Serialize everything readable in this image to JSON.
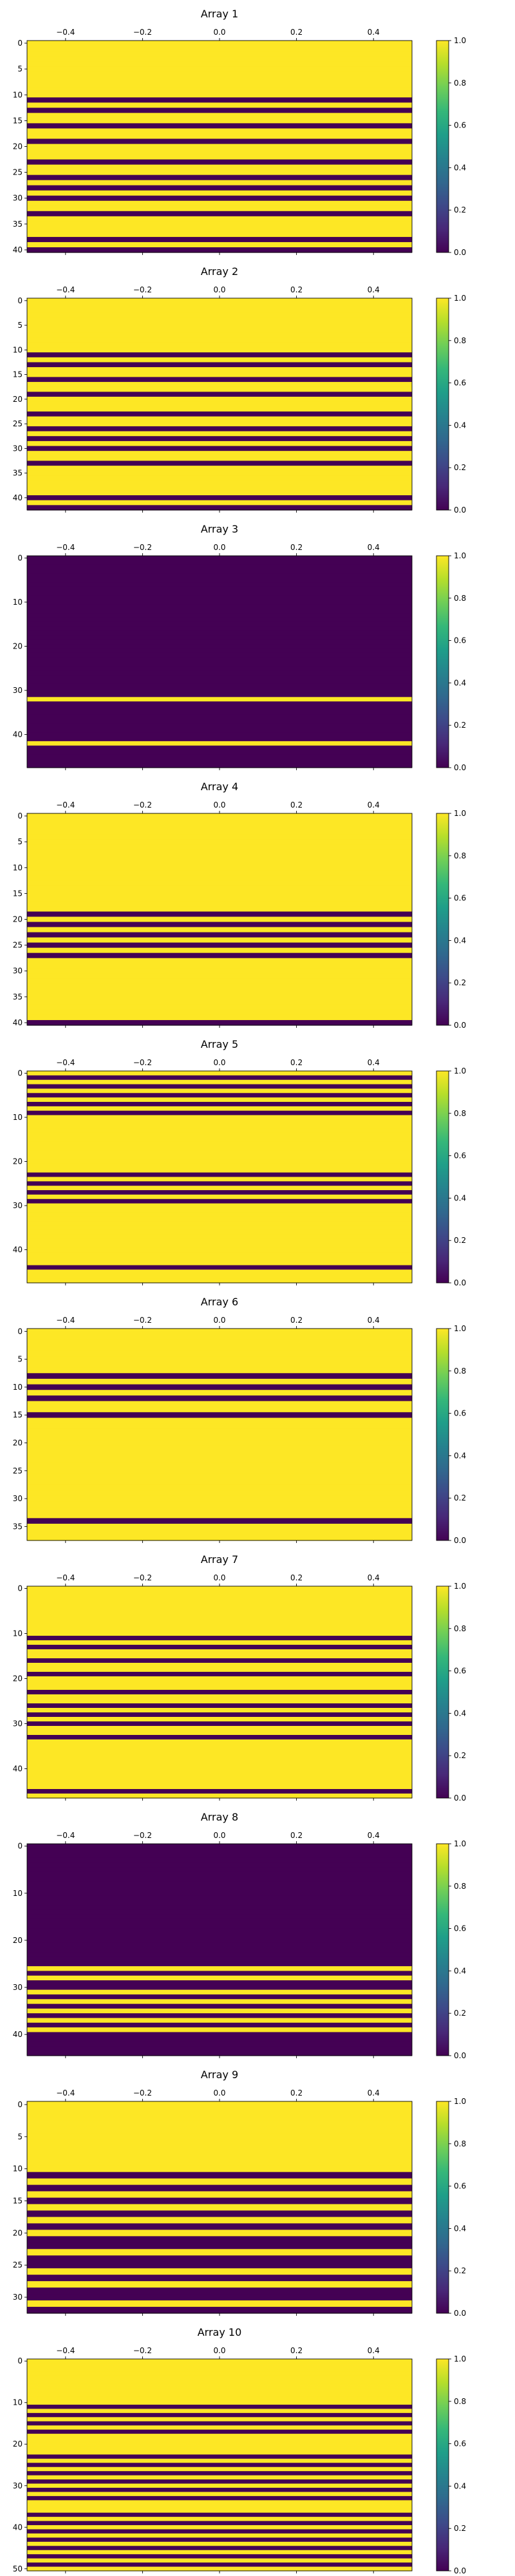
{
  "chart_data": [
    {
      "type": "heatmap",
      "title": "Array 1",
      "rows": 41,
      "xlim": [
        -0.5,
        0.5
      ],
      "x_ticks": [
        "−0.4",
        "−0.2",
        "0.0",
        "0.2",
        "0.4"
      ],
      "y_ticks": [
        "0",
        "5",
        "10",
        "15",
        "20",
        "25",
        "30",
        "35",
        "40"
      ],
      "values": [
        1,
        1,
        1,
        1,
        1,
        1,
        1,
        1,
        1,
        1,
        1,
        0,
        1,
        0,
        1,
        1,
        0,
        1,
        1,
        0,
        1,
        1,
        1,
        0,
        1,
        1,
        0,
        1,
        0,
        1,
        0,
        1,
        1,
        0,
        1,
        1,
        1,
        1,
        0,
        1,
        0
      ]
    },
    {
      "type": "heatmap",
      "title": "Array 2",
      "rows": 43,
      "xlim": [
        -0.5,
        0.5
      ],
      "x_ticks": [
        "−0.4",
        "−0.2",
        "0.0",
        "0.2",
        "0.4"
      ],
      "y_ticks": [
        "0",
        "5",
        "10",
        "15",
        "20",
        "25",
        "30",
        "35",
        "40"
      ],
      "values": [
        1,
        1,
        1,
        1,
        1,
        1,
        1,
        1,
        1,
        1,
        1,
        0,
        1,
        0,
        1,
        1,
        0,
        1,
        1,
        0,
        1,
        1,
        1,
        0,
        1,
        1,
        0,
        1,
        0,
        1,
        0,
        1,
        1,
        0,
        1,
        1,
        1,
        1,
        1,
        1,
        0,
        1,
        0
      ]
    },
    {
      "type": "heatmap",
      "title": "Array 3",
      "rows": 48,
      "xlim": [
        -0.5,
        0.5
      ],
      "x_ticks": [
        "−0.4",
        "−0.2",
        "0.0",
        "0.2",
        "0.4"
      ],
      "y_ticks": [
        "0",
        "10",
        "20",
        "30",
        "40"
      ],
      "values": [
        0,
        0,
        0,
        0,
        0,
        0,
        0,
        0,
        0,
        0,
        0,
        0,
        0,
        0,
        0,
        0,
        0,
        0,
        0,
        0,
        0,
        0,
        0,
        0,
        0,
        0,
        0,
        0,
        0,
        0,
        0,
        0,
        1,
        0,
        0,
        0,
        0,
        0,
        0,
        0,
        0,
        0,
        1,
        0,
        0,
        0,
        0,
        0
      ]
    },
    {
      "type": "heatmap",
      "title": "Array 4",
      "rows": 41,
      "xlim": [
        -0.5,
        0.5
      ],
      "x_ticks": [
        "−0.4",
        "−0.2",
        "0.0",
        "0.2",
        "0.4"
      ],
      "y_ticks": [
        "0",
        "5",
        "10",
        "15",
        "20",
        "25",
        "30",
        "35",
        "40"
      ],
      "values": [
        1,
        1,
        1,
        1,
        1,
        1,
        1,
        1,
        1,
        1,
        1,
        1,
        1,
        1,
        1,
        1,
        1,
        1,
        1,
        0,
        1,
        0,
        1,
        0,
        1,
        0,
        1,
        0,
        1,
        1,
        1,
        1,
        1,
        1,
        1,
        1,
        1,
        1,
        1,
        1,
        0
      ]
    },
    {
      "type": "heatmap",
      "title": "Array 5",
      "rows": 48,
      "xlim": [
        -0.5,
        0.5
      ],
      "x_ticks": [
        "−0.4",
        "−0.2",
        "0.0",
        "0.2",
        "0.4"
      ],
      "y_ticks": [
        "0",
        "10",
        "20",
        "30",
        "40"
      ],
      "values": [
        1,
        0,
        1,
        0,
        1,
        0,
        1,
        0,
        1,
        0,
        1,
        1,
        1,
        1,
        1,
        1,
        1,
        1,
        1,
        1,
        1,
        1,
        1,
        0,
        1,
        0,
        1,
        0,
        1,
        0,
        1,
        1,
        1,
        1,
        1,
        1,
        1,
        1,
        1,
        1,
        1,
        1,
        1,
        1,
        0,
        1,
        1,
        1
      ]
    },
    {
      "type": "heatmap",
      "title": "Array 6",
      "rows": 38,
      "xlim": [
        -0.5,
        0.5
      ],
      "x_ticks": [
        "−0.4",
        "−0.2",
        "0.0",
        "0.2",
        "0.4"
      ],
      "y_ticks": [
        "0",
        "5",
        "10",
        "15",
        "20",
        "25",
        "30",
        "35"
      ],
      "values": [
        1,
        1,
        1,
        1,
        1,
        1,
        1,
        1,
        0,
        1,
        0,
        1,
        0,
        1,
        1,
        0,
        1,
        1,
        1,
        1,
        1,
        1,
        1,
        1,
        1,
        1,
        1,
        1,
        1,
        1,
        1,
        1,
        1,
        1,
        0,
        1,
        1,
        1
      ]
    },
    {
      "type": "heatmap",
      "title": "Array 7",
      "rows": 47,
      "xlim": [
        -0.5,
        0.5
      ],
      "x_ticks": [
        "−0.4",
        "−0.2",
        "0.0",
        "0.2",
        "0.4"
      ],
      "y_ticks": [
        "0",
        "10",
        "20",
        "30",
        "40"
      ],
      "values": [
        1,
        1,
        1,
        1,
        1,
        1,
        1,
        1,
        1,
        1,
        1,
        0,
        1,
        0,
        1,
        1,
        0,
        1,
        1,
        0,
        1,
        1,
        1,
        0,
        1,
        1,
        0,
        1,
        0,
        1,
        0,
        1,
        1,
        0,
        1,
        1,
        1,
        1,
        1,
        1,
        1,
        1,
        1,
        1,
        1,
        0,
        1
      ]
    },
    {
      "type": "heatmap",
      "title": "Array 8",
      "rows": 45,
      "xlim": [
        -0.5,
        0.5
      ],
      "x_ticks": [
        "−0.4",
        "−0.2",
        "0.0",
        "0.2",
        "0.4"
      ],
      "y_ticks": [
        "0",
        "10",
        "20",
        "30",
        "40"
      ],
      "values": [
        0,
        0,
        0,
        0,
        0,
        0,
        0,
        0,
        0,
        0,
        0,
        0,
        0,
        0,
        0,
        0,
        0,
        0,
        0,
        0,
        0,
        0,
        0,
        0,
        0,
        0,
        1,
        0,
        1,
        0,
        0,
        1,
        0,
        1,
        0,
        1,
        0,
        1,
        0,
        1,
        0,
        0,
        0,
        0,
        0
      ]
    },
    {
      "type": "heatmap",
      "title": "Array 9",
      "rows": 33,
      "xlim": [
        -0.5,
        0.5
      ],
      "x_ticks": [
        "−0.4",
        "−0.2",
        "0.0",
        "0.2",
        "0.4"
      ],
      "y_ticks": [
        "0",
        "5",
        "10",
        "15",
        "20",
        "25",
        "30"
      ],
      "values": [
        1,
        1,
        1,
        1,
        1,
        1,
        1,
        1,
        1,
        1,
        1,
        0,
        1,
        0,
        1,
        0,
        1,
        0,
        1,
        0,
        1,
        0,
        0,
        1,
        0,
        0,
        1,
        0,
        1,
        0,
        0,
        1,
        0
      ]
    },
    {
      "type": "heatmap",
      "title": "Array 10",
      "rows": 51,
      "xlim": [
        -0.5,
        0.5
      ],
      "x_ticks": [
        "−0.4",
        "−0.2",
        "0.0",
        "0.2",
        "0.4"
      ],
      "y_ticks": [
        "0",
        "10",
        "20",
        "30",
        "40",
        "50"
      ],
      "values": [
        1,
        1,
        1,
        1,
        1,
        1,
        1,
        1,
        1,
        1,
        1,
        0,
        1,
        0,
        1,
        0,
        1,
        0,
        1,
        1,
        1,
        1,
        1,
        0,
        1,
        0,
        1,
        0,
        1,
        0,
        1,
        0,
        1,
        0,
        1,
        1,
        1,
        0,
        1,
        0,
        1,
        0,
        1,
        0,
        1,
        0,
        1,
        0,
        1,
        0,
        1
      ]
    }
  ],
  "colorbar": {
    "ticks": [
      "0.0",
      "0.2",
      "0.4",
      "0.6",
      "0.8",
      "1.0"
    ],
    "range": [
      0,
      1
    ]
  },
  "colors": {
    "low": "#440154",
    "high": "#fde725",
    "cmap": [
      "#440154",
      "#482878",
      "#3e4989",
      "#31688e",
      "#26828e",
      "#1f9e89",
      "#35b779",
      "#6ece58",
      "#b5de2b",
      "#fde725"
    ]
  }
}
